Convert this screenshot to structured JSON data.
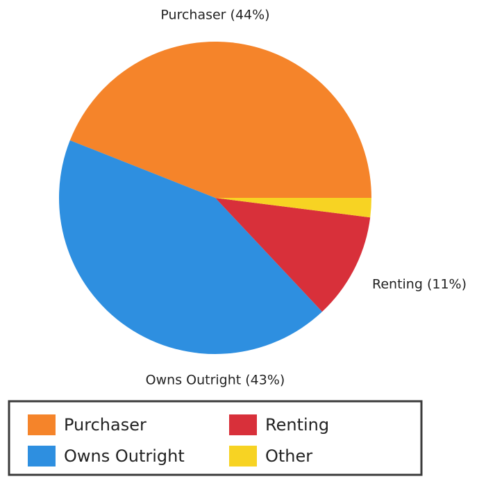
{
  "chart_data": {
    "type": "pie",
    "categories": [
      "Purchaser",
      "Owns Outright",
      "Renting",
      "Other"
    ],
    "values": [
      44,
      43,
      11,
      2
    ],
    "value_labels": [
      "Purchaser (44%)",
      "Owns Outright (43%)",
      "Renting (11%)",
      null
    ],
    "colors": [
      "#f5842a",
      "#2e8fe0",
      "#d8303a",
      "#f7d323"
    ],
    "legend": "bottom"
  }
}
